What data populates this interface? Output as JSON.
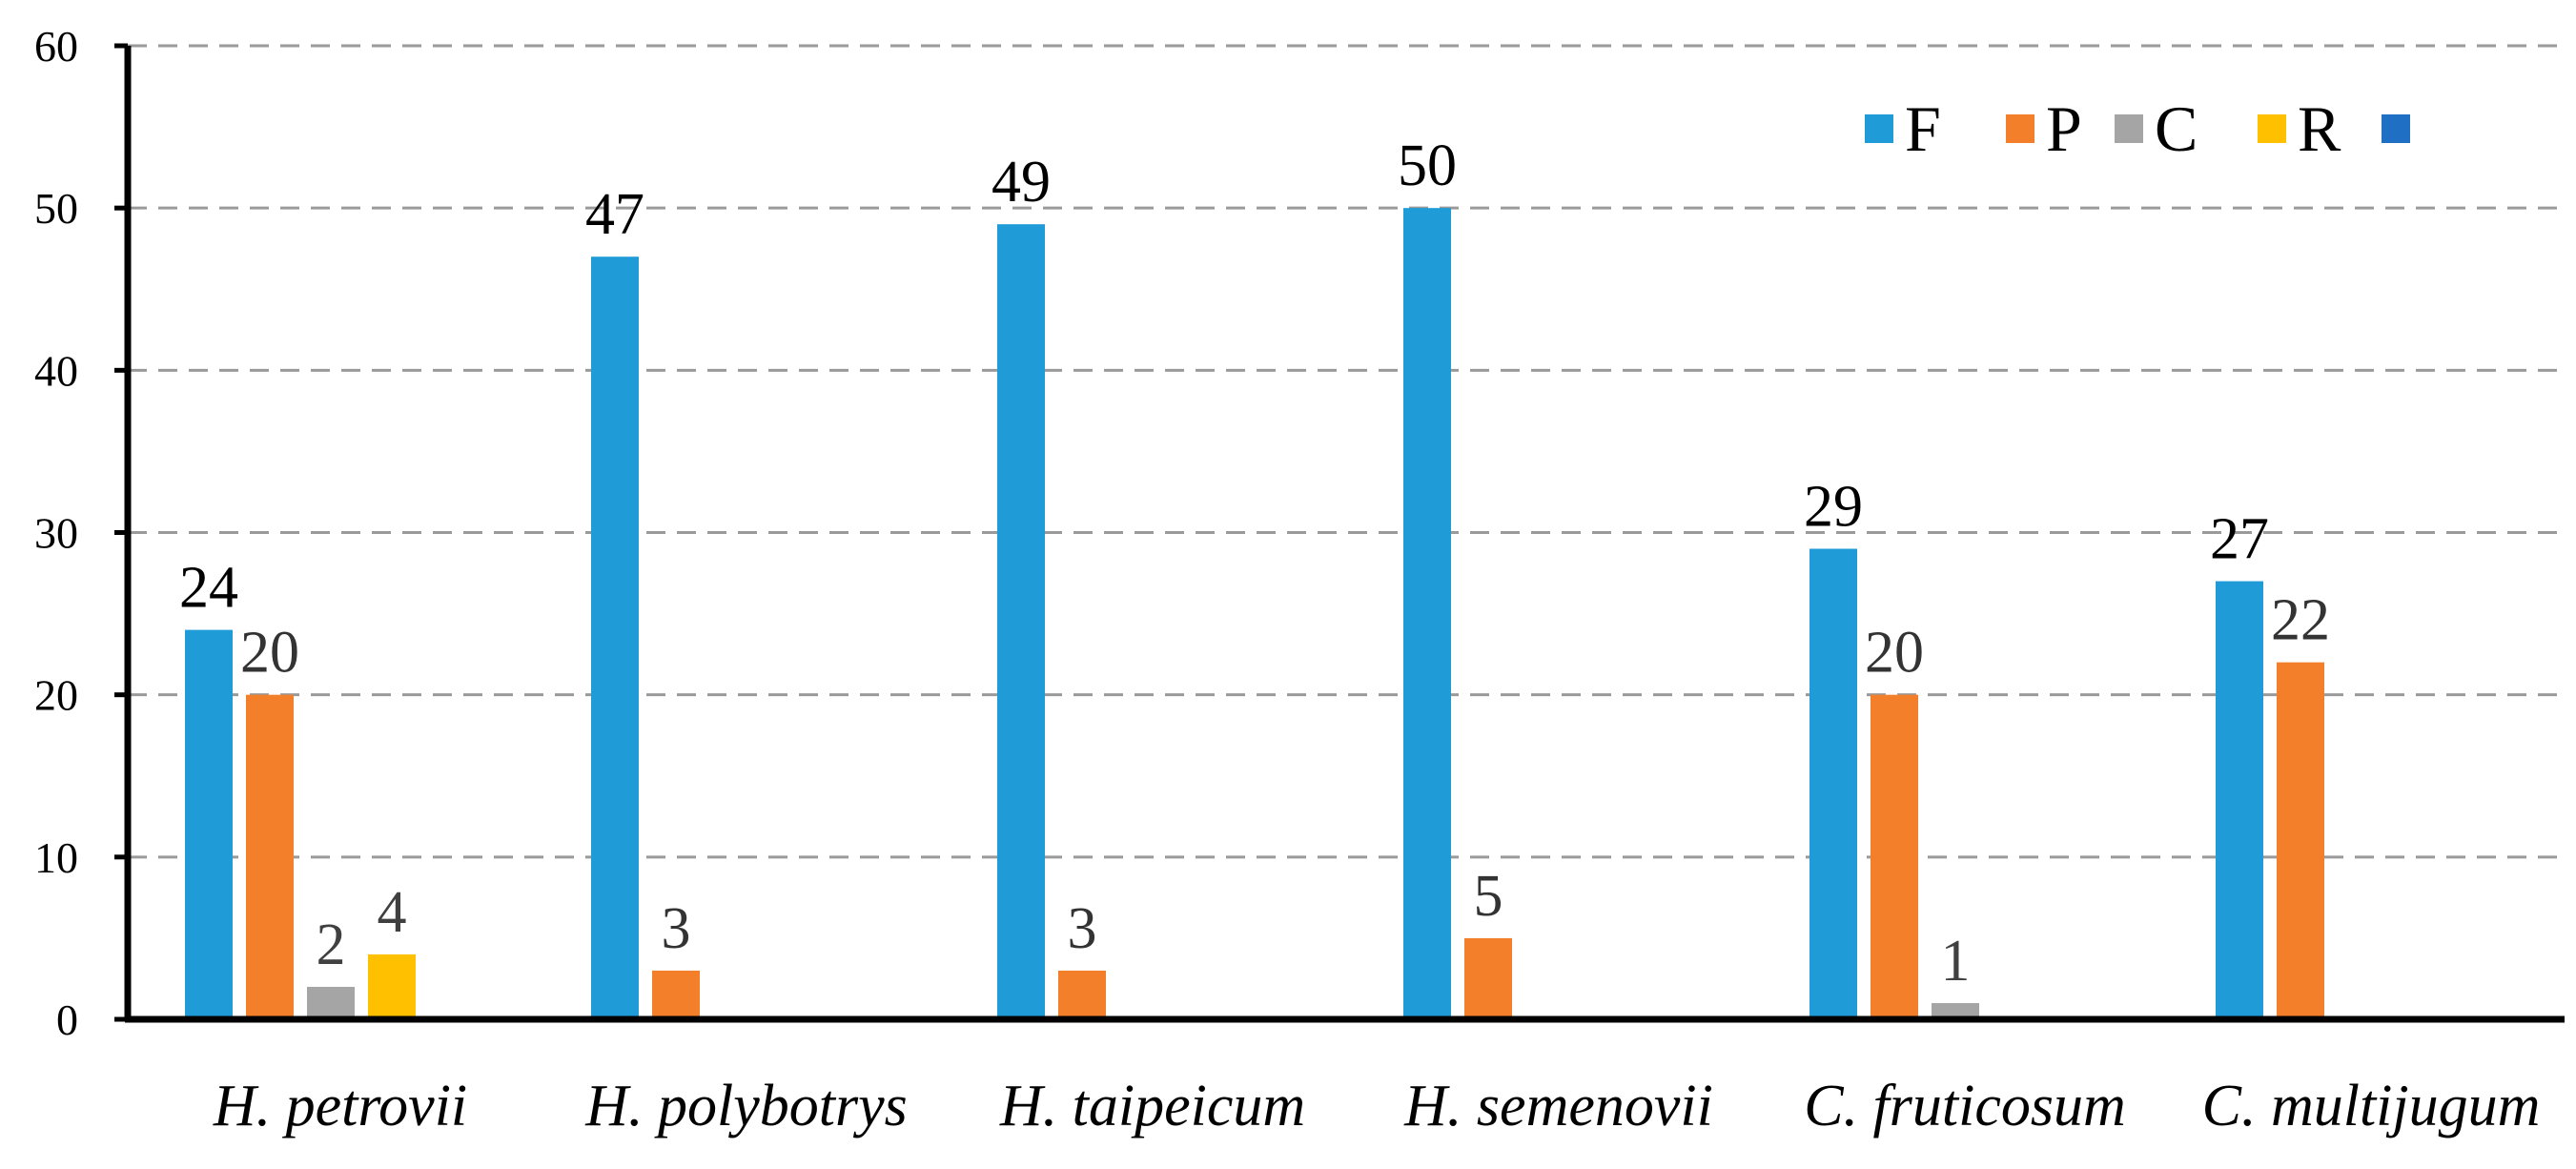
{
  "chart_data": {
    "type": "bar",
    "title": "",
    "xlabel": "",
    "ylabel": "",
    "ylim": [
      0,
      60
    ],
    "yticks": [
      "0",
      "10",
      "20",
      "30",
      "40",
      "50",
      "60"
    ],
    "grid": true,
    "legend_position": "top-right",
    "categories": [
      "H. petrovii",
      "H. polybotrys",
      "H. taipeicum",
      "H. semenovii",
      "C. fruticosum",
      "C. multijugum"
    ],
    "series": [
      {
        "name": "F",
        "color": "#1F9BD7",
        "values": [
          24,
          47,
          49,
          50,
          29,
          27
        ],
        "labels": [
          "24",
          "47",
          "49",
          "50",
          "29",
          "27"
        ]
      },
      {
        "name": "P",
        "color": "#F47F2A",
        "values": [
          20,
          3,
          3,
          5,
          20,
          22
        ],
        "labels": [
          "20",
          "3",
          "3",
          "5",
          "20",
          "22"
        ]
      },
      {
        "name": "C",
        "color": "#A5A5A5",
        "values": [
          2,
          0,
          0,
          0,
          1,
          0
        ],
        "labels": [
          "2",
          "",
          "",
          "",
          "1",
          ""
        ]
      },
      {
        "name": "R",
        "color": "#FFC000",
        "values": [
          4,
          0,
          0,
          0,
          0,
          0
        ],
        "labels": [
          "4",
          "",
          "",
          "",
          "",
          ""
        ]
      },
      {
        "name": "",
        "color": "#1F6FC5",
        "values": [
          0,
          0,
          0,
          0,
          0,
          0
        ],
        "labels": [
          "",
          "",
          "",
          "",
          "",
          ""
        ]
      }
    ],
    "label_colors": [
      "#000000",
      "#333333",
      "#404040",
      "#404040",
      "#404040"
    ]
  }
}
